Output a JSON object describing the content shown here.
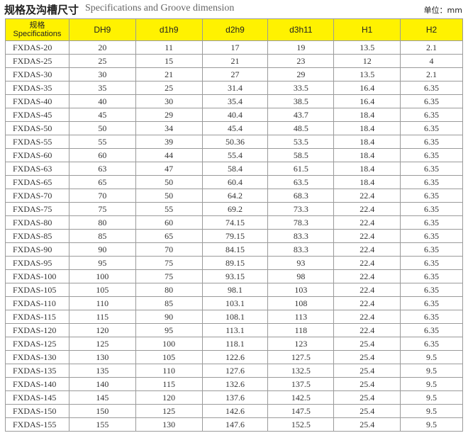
{
  "title_cn": "规格及沟槽尺寸",
  "title_en": "Specifications and Groove dimension",
  "unit": "单位：mm",
  "table": {
    "header": {
      "spec_cn": "规格",
      "spec_en": "Specifications",
      "columns": [
        "DH9",
        "d1h9",
        "d2h9",
        "d3h11",
        "H1",
        "H2"
      ]
    },
    "rows": [
      [
        "FXDAS-20",
        20,
        11,
        17,
        19,
        13.5,
        2.1
      ],
      [
        "FXDAS-25",
        25,
        15,
        21,
        23,
        12,
        4
      ],
      [
        "FXDAS-30",
        30,
        21,
        27,
        29,
        13.5,
        2.1
      ],
      [
        "FXDAS-35",
        35,
        25,
        31.4,
        33.5,
        16.4,
        6.35
      ],
      [
        "FXDAS-40",
        40,
        30,
        35.4,
        38.5,
        16.4,
        6.35
      ],
      [
        "FXDAS-45",
        45,
        29,
        40.4,
        43.7,
        18.4,
        6.35
      ],
      [
        "FXDAS-50",
        50,
        34,
        45.4,
        48.5,
        18.4,
        6.35
      ],
      [
        "FXDAS-55",
        55,
        39,
        50.36,
        53.5,
        18.4,
        6.35
      ],
      [
        "FXDAS-60",
        60,
        44,
        55.4,
        58.5,
        18.4,
        6.35
      ],
      [
        "FXDAS-63",
        63,
        47,
        58.4,
        61.5,
        18.4,
        6.35
      ],
      [
        "FXDAS-65",
        65,
        50,
        60.4,
        63.5,
        18.4,
        6.35
      ],
      [
        "FXDAS-70",
        70,
        50,
        64.2,
        68.3,
        22.4,
        6.35
      ],
      [
        "FXDAS-75",
        75,
        55,
        69.2,
        73.3,
        22.4,
        6.35
      ],
      [
        "FXDAS-80",
        80,
        60,
        74.15,
        78.3,
        22.4,
        6.35
      ],
      [
        "FXDAS-85",
        85,
        65,
        79.15,
        83.3,
        22.4,
        6.35
      ],
      [
        "FXDAS-90",
        90,
        70,
        84.15,
        83.3,
        22.4,
        6.35
      ],
      [
        "FXDAS-95",
        95,
        75,
        89.15,
        93,
        22.4,
        6.35
      ],
      [
        "FXDAS-100",
        100,
        75,
        93.15,
        98,
        22.4,
        6.35
      ],
      [
        "FXDAS-105",
        105,
        80,
        98.1,
        103,
        22.4,
        6.35
      ],
      [
        "FXDAS-110",
        110,
        85,
        103.1,
        108,
        22.4,
        6.35
      ],
      [
        "FXDAS-115",
        115,
        90,
        108.1,
        113,
        22.4,
        6.35
      ],
      [
        "FXDAS-120",
        120,
        95,
        113.1,
        118,
        22.4,
        6.35
      ],
      [
        "FXDAS-125",
        125,
        100,
        118.1,
        123,
        25.4,
        6.35
      ],
      [
        "FXDAS-130",
        130,
        105,
        122.6,
        127.5,
        25.4,
        9.5
      ],
      [
        "FXDAS-135",
        135,
        110,
        127.6,
        132.5,
        25.4,
        9.5
      ],
      [
        "FXDAS-140",
        140,
        115,
        132.6,
        137.5,
        25.4,
        9.5
      ],
      [
        "FXDAS-145",
        145,
        120,
        137.6,
        142.5,
        25.4,
        9.5
      ],
      [
        "FXDAS-150",
        150,
        125,
        142.6,
        147.5,
        25.4,
        9.5
      ],
      [
        "FXDAS-155",
        155,
        130,
        147.6,
        152.5,
        25.4,
        9.5
      ]
    ]
  }
}
